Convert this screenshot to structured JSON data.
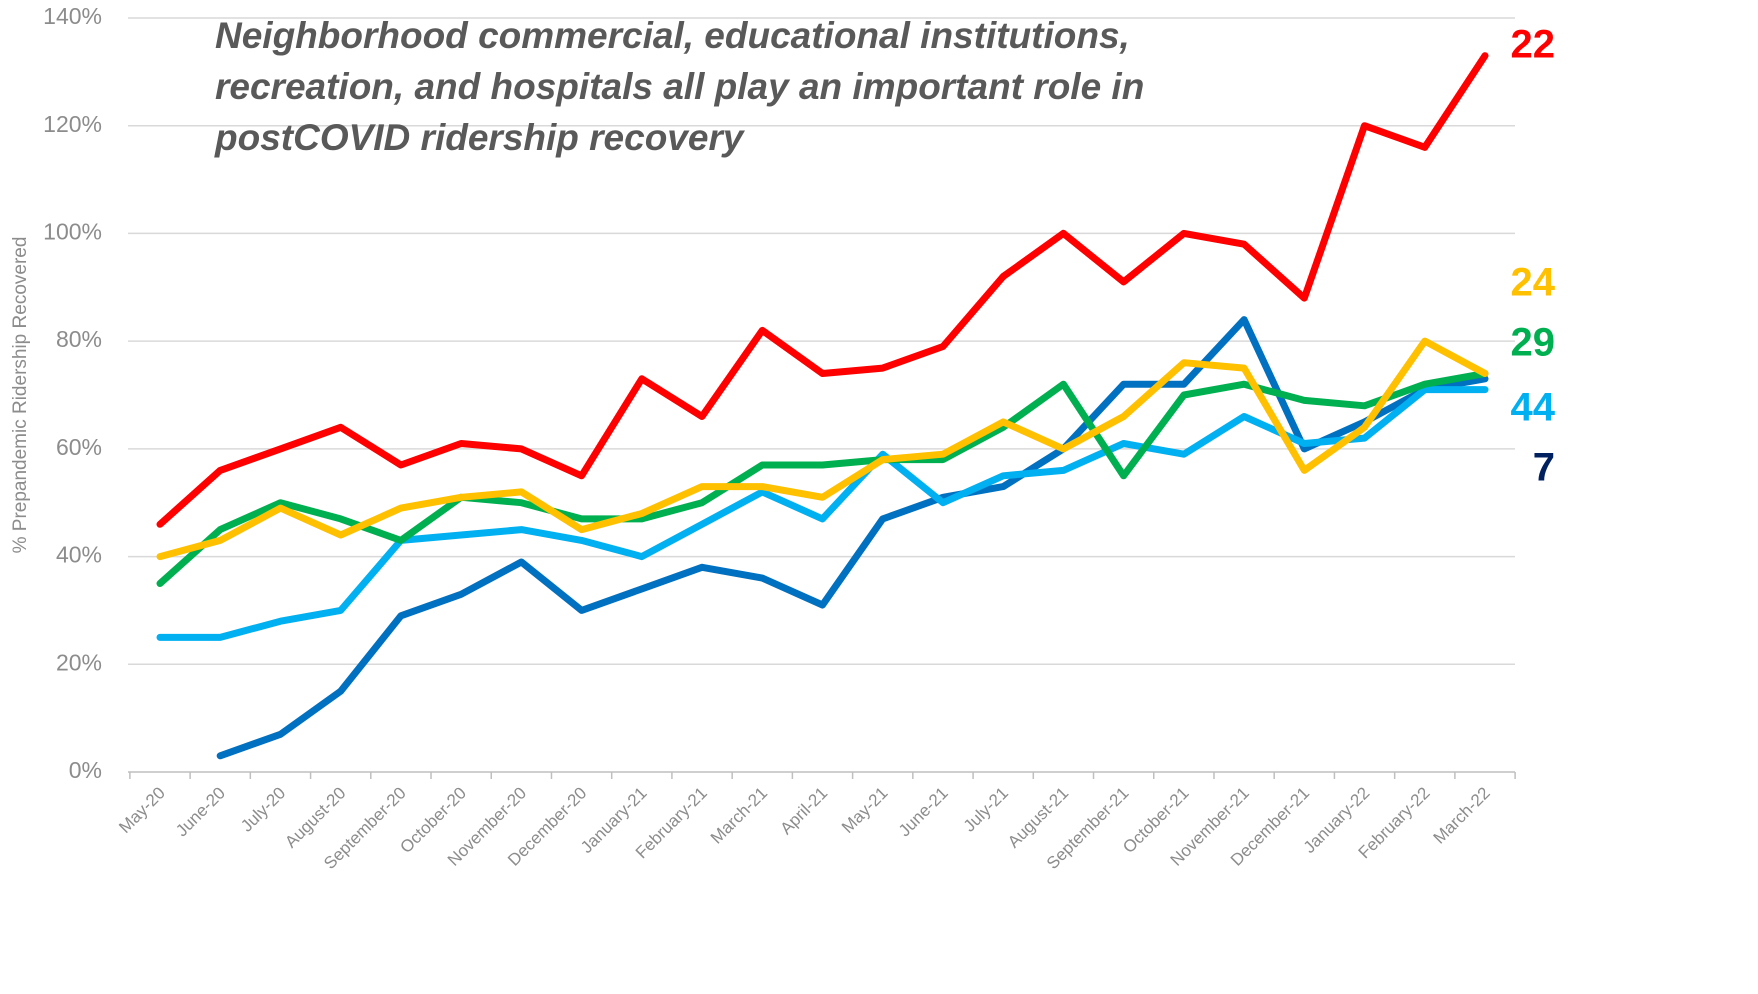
{
  "chart_data": {
    "type": "line",
    "title": "Neighborhood commercial, educational institutions, recreation, and hospitals all play an important role in postCOVID ridership recovery",
    "y_axis_label": "% Prepandemic Ridership Recovered",
    "categories": [
      "May-20",
      "June-20",
      "July-20",
      "August-20",
      "September-20",
      "October-20",
      "November-20",
      "December-20",
      "January-21",
      "February-21",
      "March-21",
      "April-21",
      "May-21",
      "June-21",
      "July-21",
      "August-21",
      "September-21",
      "October-21",
      "November-21",
      "December-21",
      "January-22",
      "February-22",
      "March-22"
    ],
    "series": [
      {
        "name": "22",
        "color": "#ff0000",
        "values": [
          46,
          56,
          60,
          64,
          57,
          61,
          60,
          55,
          73,
          66,
          82,
          74,
          75,
          79,
          92,
          100,
          91,
          100,
          98,
          88,
          120,
          116,
          133
        ]
      },
      {
        "name": "24",
        "color": "#ffc000",
        "values": [
          40,
          43,
          49,
          44,
          49,
          51,
          52,
          45,
          48,
          53,
          53,
          51,
          58,
          59,
          65,
          60,
          66,
          76,
          75,
          56,
          64,
          80,
          74
        ]
      },
      {
        "name": "29",
        "color": "#00b050",
        "values": [
          35,
          45,
          50,
          47,
          43,
          51,
          50,
          47,
          47,
          50,
          57,
          57,
          58,
          58,
          64,
          72,
          55,
          70,
          72,
          69,
          68,
          72,
          74
        ]
      },
      {
        "name": "44",
        "color": "#00b0f0",
        "values": [
          25,
          25,
          28,
          30,
          43,
          44,
          45,
          43,
          40,
          46,
          52,
          47,
          59,
          50,
          55,
          56,
          61,
          59,
          66,
          61,
          62,
          71,
          71
        ]
      },
      {
        "name": "7",
        "color": "#0070c0",
        "label_color": "#002060",
        "values": [
          null,
          3,
          7,
          15,
          29,
          33,
          39,
          30,
          34,
          38,
          36,
          31,
          47,
          51,
          53,
          60,
          72,
          72,
          84,
          60,
          65,
          71,
          73
        ]
      }
    ],
    "ylim": [
      0,
      140
    ],
    "yticks": [
      {
        "value": 0,
        "label": "0%"
      },
      {
        "value": 20,
        "label": "20%"
      },
      {
        "value": 40,
        "label": "40%"
      },
      {
        "value": 60,
        "label": "60%"
      },
      {
        "value": 80,
        "label": "80%"
      },
      {
        "value": 100,
        "label": "100%"
      },
      {
        "value": 120,
        "label": "120%"
      },
      {
        "value": 140,
        "label": "140%"
      }
    ],
    "grid": true
  }
}
